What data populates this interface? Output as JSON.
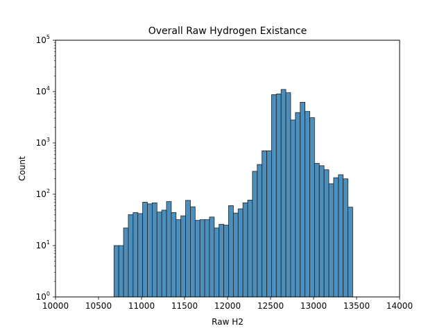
{
  "chart_data": {
    "type": "bar",
    "title": "Overall Raw Hydrogen Existance",
    "xlabel": "Raw H2",
    "ylabel": "Count",
    "xlim": [
      10000,
      14000
    ],
    "ylim": [
      1,
      100000
    ],
    "yscale": "log",
    "grid": false,
    "bar_color": "#4c8fbd",
    "edge_color": "#1f1f1f",
    "x_ticks": [
      10000,
      10500,
      11000,
      11500,
      12000,
      12500,
      13000,
      13500,
      14000
    ],
    "x_tick_labels": [
      "10000",
      "10500",
      "11000",
      "11500",
      "12000",
      "12500",
      "13000",
      "13500",
      "14000"
    ],
    "y_ticks": [
      1,
      10,
      100,
      1000,
      10000,
      100000
    ],
    "y_tick_labels": [
      {
        "base": "10",
        "exp": "0"
      },
      {
        "base": "10",
        "exp": "1"
      },
      {
        "base": "10",
        "exp": "2"
      },
      {
        "base": "10",
        "exp": "3"
      },
      {
        "base": "10",
        "exp": "4"
      },
      {
        "base": "10",
        "exp": "5"
      }
    ],
    "bins": {
      "start": 10680,
      "width": 55.5,
      "counts": [
        10,
        10,
        22,
        40,
        44,
        42,
        70,
        65,
        68,
        45,
        49,
        72,
        44,
        32,
        38,
        76,
        57,
        31,
        32,
        32,
        36,
        22,
        26,
        25,
        60,
        43,
        52,
        68,
        77,
        280,
        380,
        700,
        700,
        8700,
        9000,
        11000,
        9500,
        2800,
        3900,
        6200,
        4100,
        3100,
        400,
        360,
        300,
        160,
        210,
        240,
        200,
        56
      ]
    }
  }
}
